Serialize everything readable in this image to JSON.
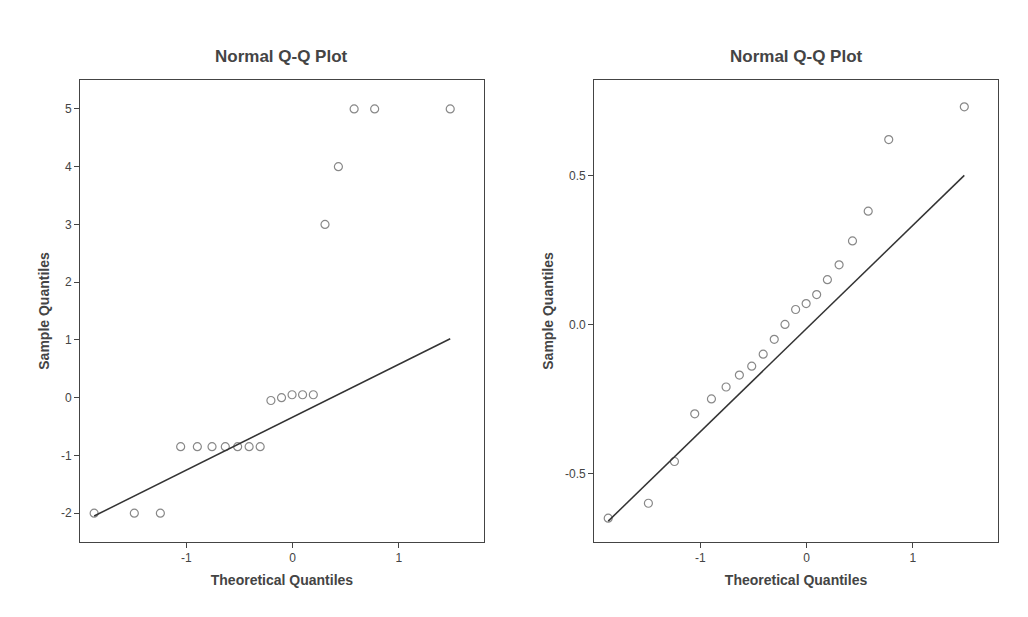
{
  "chart_data": [
    {
      "type": "scatter",
      "title": "Normal Q-Q Plot",
      "xlabel": "Theoretical Quantiles",
      "ylabel": "Sample Quantiles",
      "series": [
        {
          "type": "scatter",
          "marker": "circle-open",
          "color": "#888888",
          "x": [
            -1.867,
            -1.489,
            -1.244,
            -1.053,
            -0.896,
            -0.758,
            -0.633,
            -0.517,
            -0.409,
            -0.305,
            -0.204,
            -0.104,
            -0.005,
            0.094,
            0.195,
            0.305,
            0.431,
            0.579,
            0.772,
            1.483
          ],
          "values": [
            -2.0,
            -2.0,
            -2.0,
            -0.85,
            -0.85,
            -0.85,
            -0.85,
            -0.85,
            -0.85,
            -0.85,
            -0.05,
            0.0,
            0.05,
            0.05,
            0.05,
            3.0,
            4.0,
            5.0,
            5.0,
            5.0
          ]
        },
        {
          "type": "line",
          "line_style": "solid",
          "color": "#333333",
          "x": [
            -1.867,
            1.483
          ],
          "values": [
            -2.05,
            1.02
          ]
        }
      ],
      "xlim": [
        -2.0,
        1.8
      ],
      "ylim": [
        -2.5,
        5.5
      ],
      "xticks": [
        -1,
        0,
        1
      ],
      "yticks": [
        -2,
        -1,
        0,
        1,
        2,
        3,
        4,
        5
      ],
      "grid": false
    },
    {
      "type": "scatter",
      "title": "Normal Q-Q Plot",
      "xlabel": "Theoretical Quantiles",
      "ylabel": "Sample Quantiles",
      "series": [
        {
          "type": "scatter",
          "marker": "circle-open",
          "color": "#888888",
          "x": [
            -1.867,
            -1.489,
            -1.244,
            -1.053,
            -0.896,
            -0.758,
            -0.633,
            -0.517,
            -0.409,
            -0.305,
            -0.204,
            -0.104,
            -0.005,
            0.094,
            0.195,
            0.305,
            0.431,
            0.579,
            0.772,
            1.483
          ],
          "values": [
            -0.65,
            -0.6,
            -0.46,
            -0.3,
            -0.25,
            -0.21,
            -0.17,
            -0.14,
            -0.1,
            -0.05,
            0.0,
            0.05,
            0.07,
            0.1,
            0.15,
            0.2,
            0.28,
            0.38,
            0.62,
            0.73
          ]
        },
        {
          "type": "line",
          "line_style": "solid",
          "color": "#333333",
          "x": [
            -1.867,
            1.483
          ],
          "values": [
            -0.66,
            0.5
          ]
        }
      ],
      "xlim": [
        -2.0,
        1.8
      ],
      "ylim": [
        -0.73,
        0.82
      ],
      "xticks": [
        -1,
        0,
        1
      ],
      "yticks": [
        -0.5,
        {
          "value": 0,
          "label": "0.0"
        },
        0.5
      ],
      "grid": false
    }
  ]
}
